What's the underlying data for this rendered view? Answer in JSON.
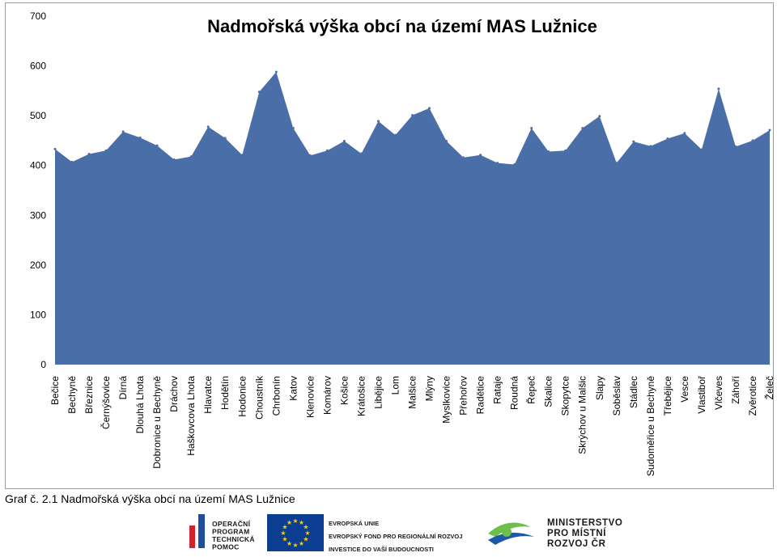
{
  "chart_data": {
    "type": "area",
    "title": "Nadmořská výška obcí na území MAS Lužnice",
    "xlabel": "",
    "ylabel": "",
    "ylim": [
      0,
      700
    ],
    "yticks": [
      0,
      100,
      200,
      300,
      400,
      500,
      600,
      700
    ],
    "grid": false,
    "legend": "none",
    "color": "#4a6fa8",
    "categories": [
      "Bečice",
      "Bechyně",
      "Březnice",
      "Černýšovice",
      "Dírná",
      "Dlouhá Lhota",
      "Dobronice u Bechyně",
      "Dráchov",
      "Haškovcova Lhota",
      "Hlavatce",
      "Hodětín",
      "Hodonice",
      "Choustník",
      "Chrbonín",
      "Katov",
      "Klenovice",
      "Komárov",
      "Košice",
      "Krátošice",
      "Libějice",
      "Lom",
      "Malšice",
      "Mlýny",
      "Myslkovice",
      "Přehořov",
      "Radětice",
      "Rataje",
      "Roudná",
      "Řepeč",
      "Skalice",
      "Skopytce",
      "Skrýchov u Malšic",
      "Slapy",
      "Soběslav",
      "Stádlec",
      "Sudoměřice u Bechyně",
      "Třebějice",
      "Vesce",
      "Vlastiboř",
      "Vlčeves",
      "Záhoří",
      "Zvěrotice",
      "Želeč"
    ],
    "values": [
      433,
      407,
      423,
      430,
      468,
      456,
      440,
      412,
      418,
      478,
      455,
      421,
      548,
      588,
      475,
      420,
      430,
      449,
      424,
      489,
      461,
      501,
      515,
      449,
      416,
      421,
      405,
      402,
      475,
      428,
      430,
      475,
      499,
      405,
      448,
      439,
      454,
      465,
      432,
      554,
      438,
      450,
      471
    ]
  },
  "caption": "Graf č. 2.1 Nadmořská výška obcí na území MAS Lužnice",
  "logos": {
    "op_lines": [
      "OPERAČNÍ",
      "PROGRAM",
      "TECHNICKÁ",
      "POMOC"
    ],
    "eu_lines": [
      "EVROPSKÁ UNIE",
      "EVROPSKÝ FOND PRO REGIONÁLNÍ ROZVOJ",
      "INVESTICE DO VAŠÍ BUDOUCNOSTI"
    ],
    "ministry_lines": [
      "MINISTERSTVO",
      "PRO MÍSTNÍ",
      "ROZVOJ ČR"
    ],
    "colors": {
      "op_red": "#d2232a",
      "op_blue": "#1f4e9c",
      "eu_blue": "#0b3d91",
      "eu_star": "#ffcc00",
      "mmr_green": "#6cbf4a",
      "mmr_blue": "#1d5aa5",
      "text": "#1a1a1a"
    }
  }
}
